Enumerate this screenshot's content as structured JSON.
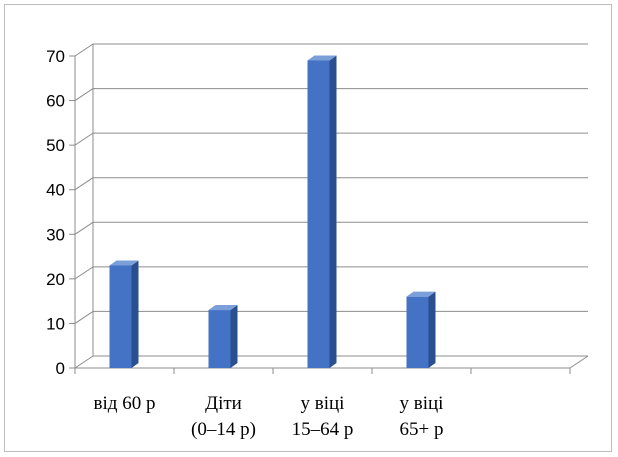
{
  "chart_data": {
    "type": "bar",
    "title": "",
    "xlabel": "",
    "ylabel": "",
    "categories": [
      [
        "від 60 р"
      ],
      [
        "Діти",
        "(0–14 р)"
      ],
      [
        "у віці",
        "15–64 р"
      ],
      [
        "у віці",
        "65+ р"
      ],
      [
        ""
      ]
    ],
    "values": [
      23,
      13,
      69,
      16,
      null
    ],
    "ylim": [
      0,
      70
    ],
    "yticks": [
      0,
      10,
      20,
      30,
      40,
      50,
      60,
      70
    ],
    "grid": true,
    "legend": "none",
    "bar_color": "#4472c4",
    "bar_side_color": "#2a4f8f",
    "bar_top_color": "#7a9fd9",
    "grid_color": "#8c8c8c"
  }
}
